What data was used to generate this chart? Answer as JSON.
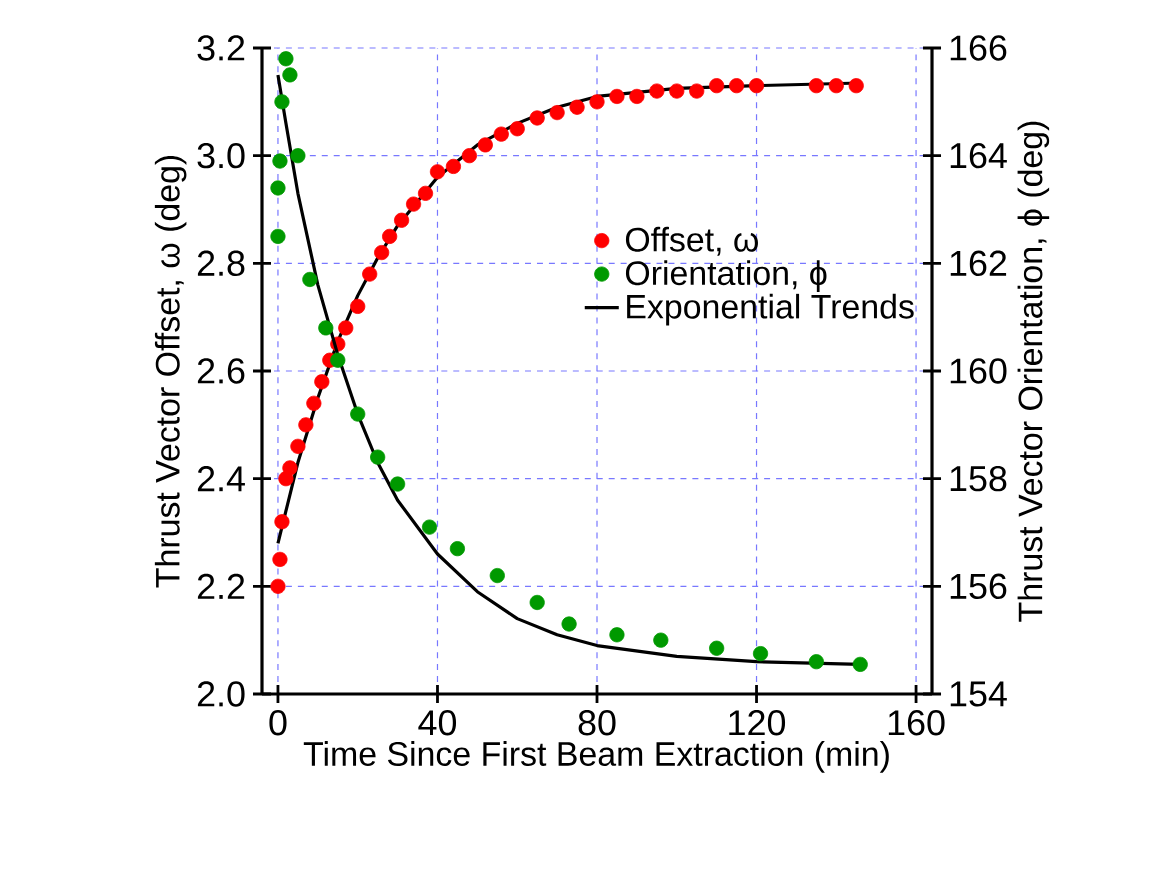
{
  "chart_data": {
    "type": "scatter",
    "xlabel": "Time Since First Beam Extraction (min)",
    "ylabel": "Thrust Vector Offset, ω (deg)",
    "y2label": "Thrust Vector Orientation, ϕ (deg)",
    "xlim": [
      -4,
      164
    ],
    "xticks": [
      0,
      40,
      80,
      120,
      160
    ],
    "ylim": [
      2.0,
      3.2
    ],
    "yticks": [
      {
        "value": 2.0,
        "label": "2.0"
      },
      {
        "value": 2.2,
        "label": "2.2"
      },
      {
        "value": 2.4,
        "label": "2.4"
      },
      {
        "value": 2.6,
        "label": "2.6"
      },
      {
        "value": 2.8,
        "label": "2.8"
      },
      {
        "value": 3.0,
        "label": "3.0"
      },
      {
        "value": 3.2,
        "label": "3.2"
      }
    ],
    "y2lim": [
      154,
      166
    ],
    "y2ticks": [
      154,
      156,
      158,
      160,
      162,
      164,
      166
    ],
    "grid": true,
    "legend": "right",
    "series": [
      {
        "name": "Offset, ω",
        "color": "#ff0000",
        "marker": "circle",
        "x": [
          0,
          0.5,
          1,
          2,
          3,
          5,
          7,
          9,
          11,
          13,
          15,
          17,
          20,
          23,
          26,
          28,
          31,
          34,
          37,
          40,
          44,
          48,
          52,
          56,
          60,
          65,
          70,
          75,
          80,
          85,
          90,
          95,
          100,
          105,
          110,
          115,
          120,
          135,
          140,
          145
        ],
        "values": [
          2.2,
          2.25,
          2.32,
          2.4,
          2.42,
          2.46,
          2.5,
          2.54,
          2.58,
          2.62,
          2.65,
          2.68,
          2.72,
          2.78,
          2.82,
          2.85,
          2.88,
          2.91,
          2.93,
          2.97,
          2.98,
          3.0,
          3.02,
          3.04,
          3.05,
          3.07,
          3.08,
          3.09,
          3.1,
          3.11,
          3.11,
          3.12,
          3.12,
          3.12,
          3.13,
          3.13,
          3.13,
          3.13,
          3.13,
          3.13
        ]
      },
      {
        "name": "Orientation, ϕ",
        "color": "#009900",
        "marker": "circle",
        "axis": "y2",
        "x": [
          0,
          0,
          0.5,
          1,
          2,
          3,
          5,
          8,
          12,
          15,
          20,
          25,
          30,
          38,
          45,
          55,
          65,
          73,
          85,
          96,
          110,
          121,
          135,
          146
        ],
        "values": [
          162.5,
          163.4,
          163.9,
          165.0,
          165.8,
          165.5,
          164.0,
          161.7,
          160.8,
          160.2,
          159.2,
          158.4,
          157.9,
          157.1,
          156.7,
          156.2,
          155.7,
          155.3,
          155.1,
          155.0,
          154.85,
          154.75,
          154.6,
          154.55
        ]
      },
      {
        "name": "Exponential Trends",
        "type": "line",
        "color": "#000000",
        "marker": "none",
        "x": [
          0,
          2,
          5,
          10,
          15,
          20,
          25,
          30,
          40,
          50,
          60,
          70,
          80,
          100,
          120,
          146
        ],
        "values": [
          2.28,
          2.34,
          2.43,
          2.55,
          2.655,
          2.74,
          2.81,
          2.87,
          2.96,
          3.02,
          3.06,
          3.09,
          3.11,
          3.125,
          3.13,
          3.135
        ]
      },
      {
        "type": "line",
        "color": "#000000",
        "marker": "none",
        "axis": "y2",
        "x": [
          0,
          2,
          5,
          10,
          15,
          20,
          25,
          30,
          40,
          50,
          60,
          70,
          80,
          100,
          120,
          146
        ],
        "values": [
          165.5,
          164.6,
          163.3,
          161.6,
          160.3,
          159.2,
          158.3,
          157.6,
          156.6,
          155.9,
          155.4,
          155.1,
          154.9,
          154.7,
          154.6,
          154.55
        ]
      }
    ]
  }
}
